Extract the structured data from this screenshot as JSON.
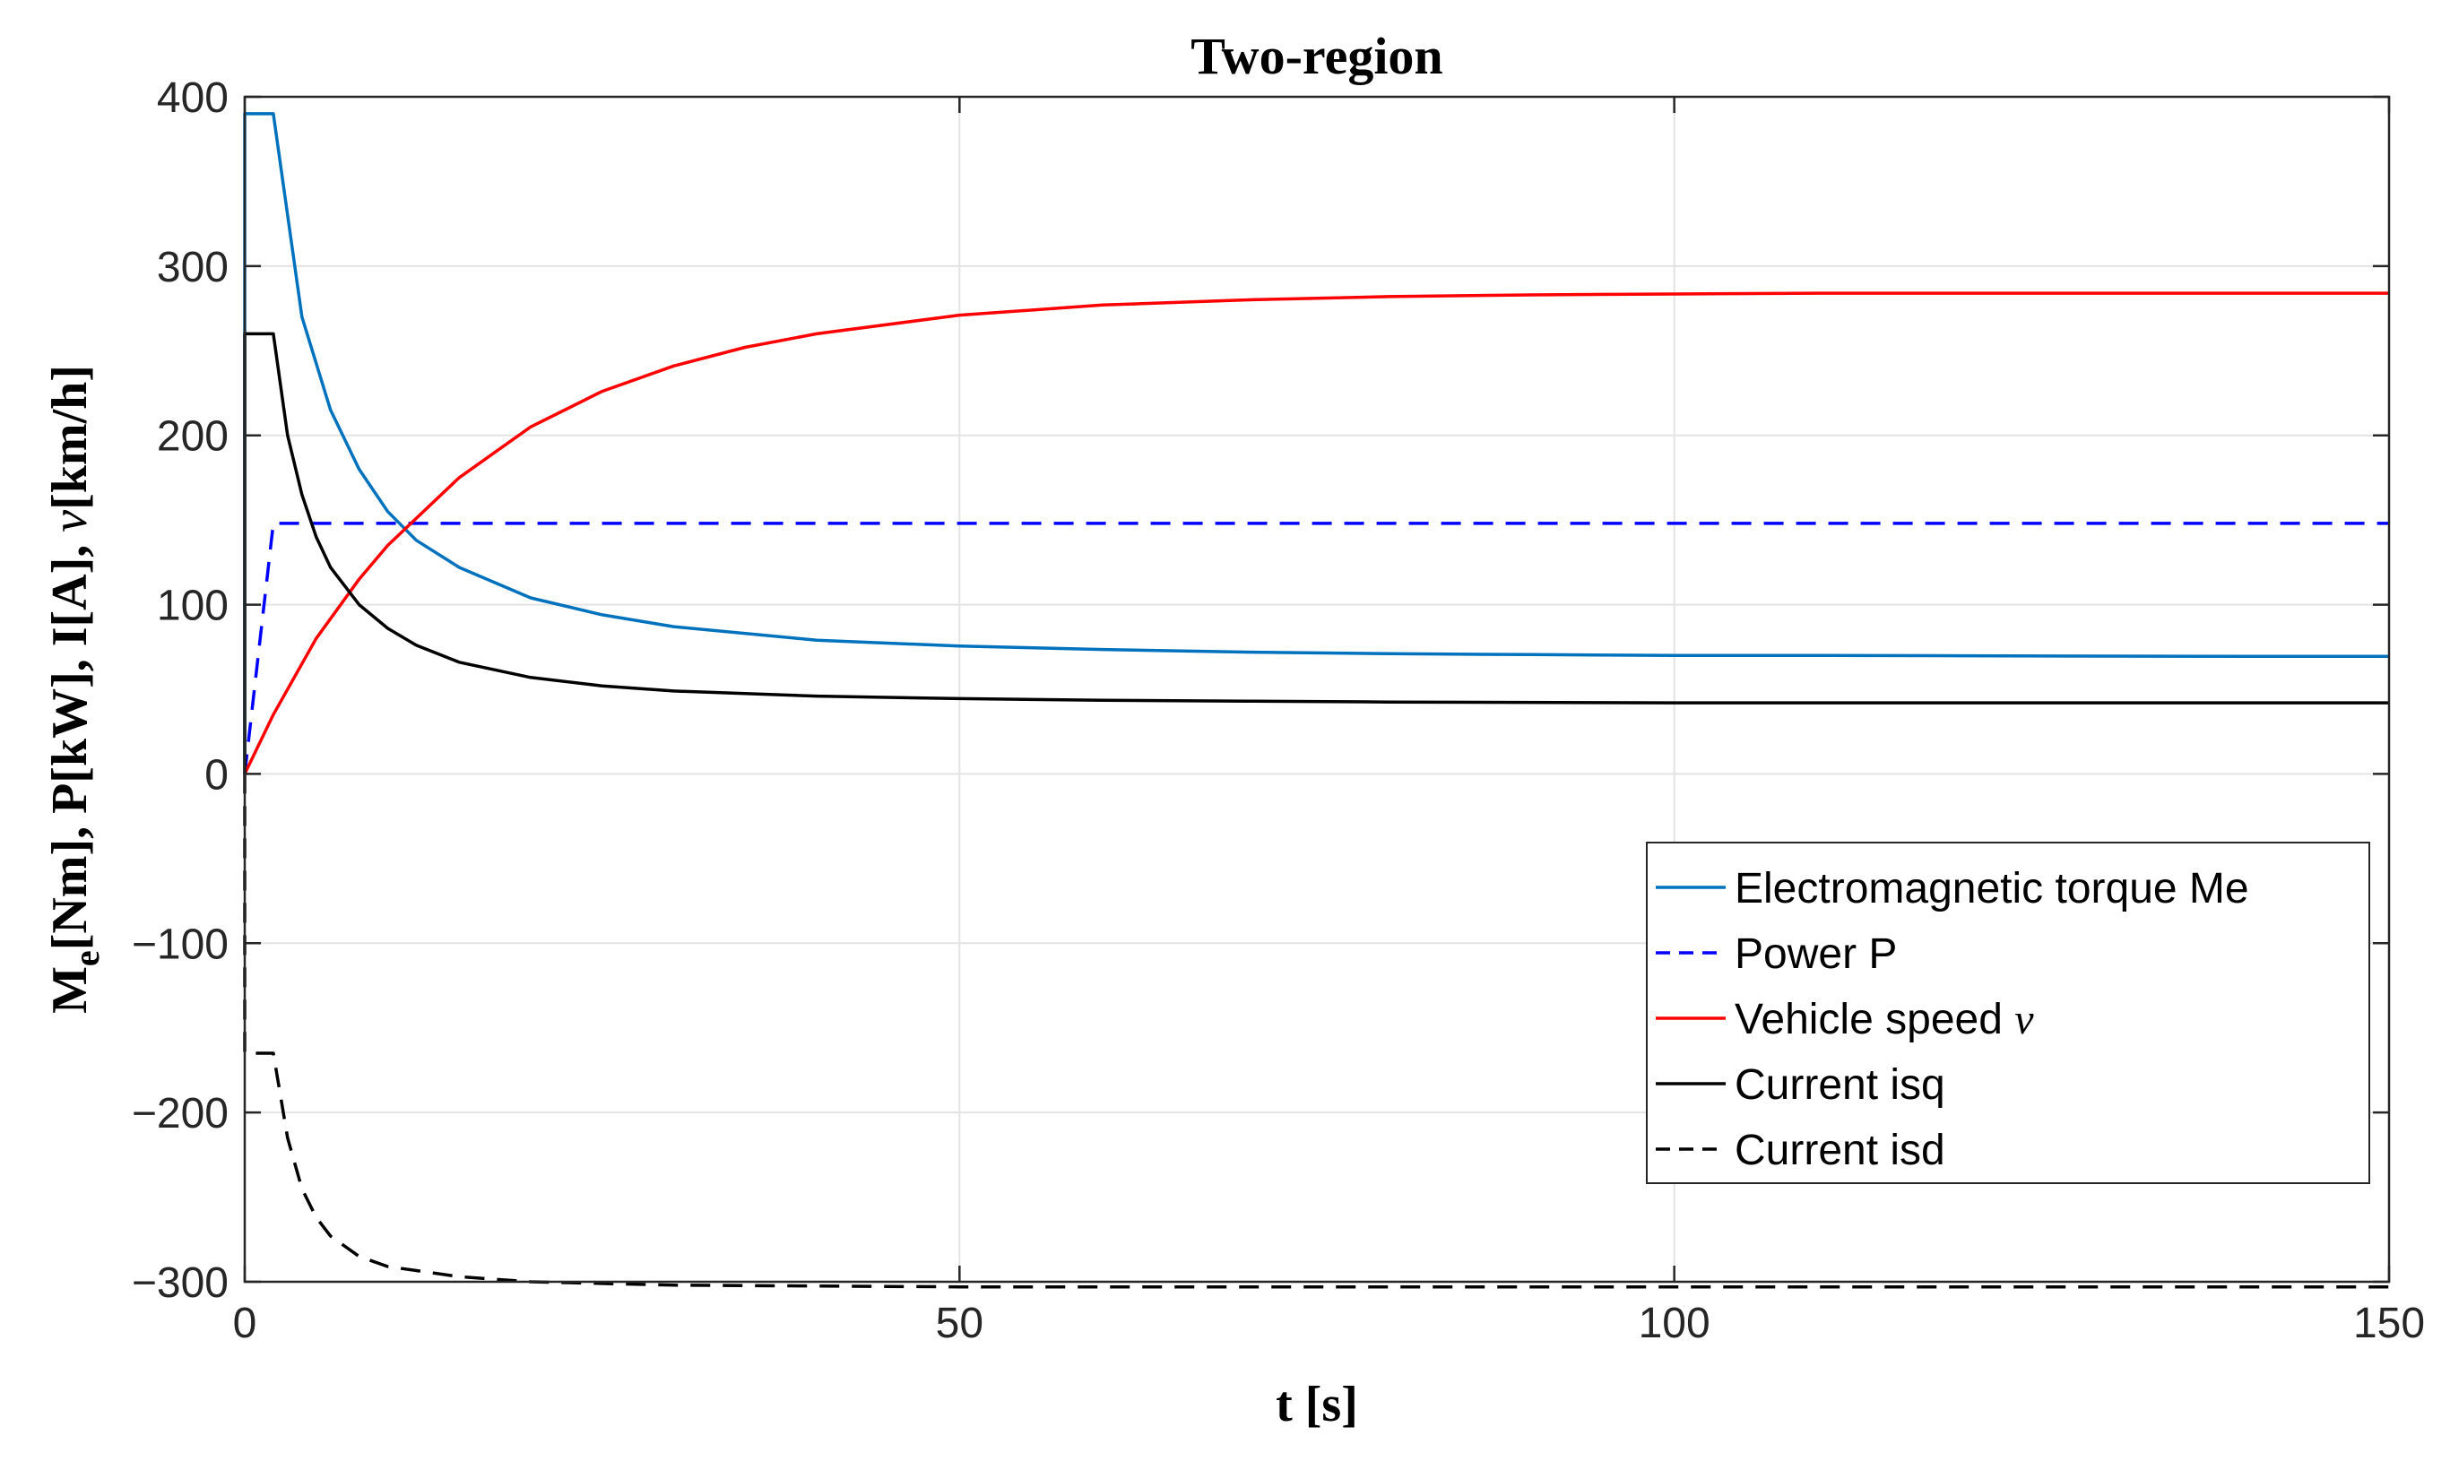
{
  "chart_data": {
    "type": "line",
    "title": "Two-region",
    "xlabel": "t [s]",
    "ylabel_parts": {
      "m": "M",
      "sub_e": "e",
      "rest": "[Nm], P[kW], I[A], ",
      "nu": "ν",
      "unit": "[km/h]"
    },
    "xlim": [
      0,
      150
    ],
    "ylim": [
      -300,
      400
    ],
    "x_ticks": [
      0,
      50,
      100,
      150
    ],
    "x_tick_labels": [
      "0",
      "50",
      "100",
      "150"
    ],
    "y_ticks": [
      400,
      300,
      200,
      100,
      0,
      -100,
      -200,
      -300
    ],
    "y_tick_labels": [
      "400",
      "300",
      "200",
      "100",
      "0",
      "−100",
      "−200",
      "−300"
    ],
    "grid": true,
    "legend_position": "lower-right",
    "series": [
      {
        "name": "Electromagnetic torque Me",
        "color": "#0072BD",
        "dash": "solid",
        "points": [
          [
            0,
            0
          ],
          [
            0,
            390
          ],
          [
            2,
            390
          ],
          [
            4,
            270
          ],
          [
            6,
            215
          ],
          [
            8,
            180
          ],
          [
            10,
            155
          ],
          [
            12,
            138
          ],
          [
            15,
            122
          ],
          [
            20,
            104
          ],
          [
            25,
            94
          ],
          [
            30,
            87
          ],
          [
            40,
            79
          ],
          [
            50,
            75.5
          ],
          [
            60,
            73.5
          ],
          [
            70,
            72
          ],
          [
            80,
            71
          ],
          [
            90,
            70.5
          ],
          [
            100,
            70
          ],
          [
            110,
            70
          ],
          [
            120,
            69.8
          ],
          [
            130,
            69.6
          ],
          [
            140,
            69.5
          ],
          [
            150,
            69.5
          ]
        ]
      },
      {
        "name": "Power P",
        "color": "#0000FF",
        "dash": "dashed",
        "points": [
          [
            0,
            0
          ],
          [
            2,
            148
          ],
          [
            150,
            148
          ]
        ]
      },
      {
        "name": "Vehicle speed ",
        "name_symbol": "ν",
        "color": "#FF0000",
        "dash": "solid",
        "points": [
          [
            0,
            0
          ],
          [
            2,
            35
          ],
          [
            5,
            80
          ],
          [
            8,
            115
          ],
          [
            10,
            135
          ],
          [
            15,
            175
          ],
          [
            20,
            205
          ],
          [
            25,
            226
          ],
          [
            30,
            241
          ],
          [
            35,
            252
          ],
          [
            40,
            260
          ],
          [
            50,
            271
          ],
          [
            60,
            277
          ],
          [
            70,
            280
          ],
          [
            80,
            282
          ],
          [
            90,
            283
          ],
          [
            100,
            283.5
          ],
          [
            110,
            284
          ],
          [
            120,
            284
          ],
          [
            130,
            284
          ],
          [
            140,
            284
          ],
          [
            150,
            284
          ]
        ]
      },
      {
        "name": "Current isq",
        "color": "#000000",
        "dash": "solid",
        "points": [
          [
            0,
            0
          ],
          [
            0,
            260
          ],
          [
            2,
            260
          ],
          [
            3,
            200
          ],
          [
            4,
            165
          ],
          [
            5,
            140
          ],
          [
            6,
            122
          ],
          [
            8,
            100
          ],
          [
            10,
            86
          ],
          [
            12,
            76
          ],
          [
            15,
            66
          ],
          [
            20,
            57
          ],
          [
            25,
            52
          ],
          [
            30,
            49
          ],
          [
            40,
            46
          ],
          [
            50,
            44.5
          ],
          [
            60,
            43.5
          ],
          [
            70,
            43
          ],
          [
            80,
            42.5
          ],
          [
            100,
            42
          ],
          [
            120,
            42
          ],
          [
            150,
            42
          ]
        ]
      },
      {
        "name": "Current isd",
        "color": "#000000",
        "dash": "dashed",
        "points": [
          [
            0,
            0
          ],
          [
            0,
            -165
          ],
          [
            2,
            -165
          ],
          [
            3,
            -215
          ],
          [
            4,
            -245
          ],
          [
            5,
            -262
          ],
          [
            6,
            -273
          ],
          [
            8,
            -285
          ],
          [
            10,
            -291
          ],
          [
            15,
            -297
          ],
          [
            20,
            -300
          ],
          [
            30,
            -302
          ],
          [
            50,
            -303
          ],
          [
            150,
            -303
          ]
        ]
      }
    ]
  }
}
